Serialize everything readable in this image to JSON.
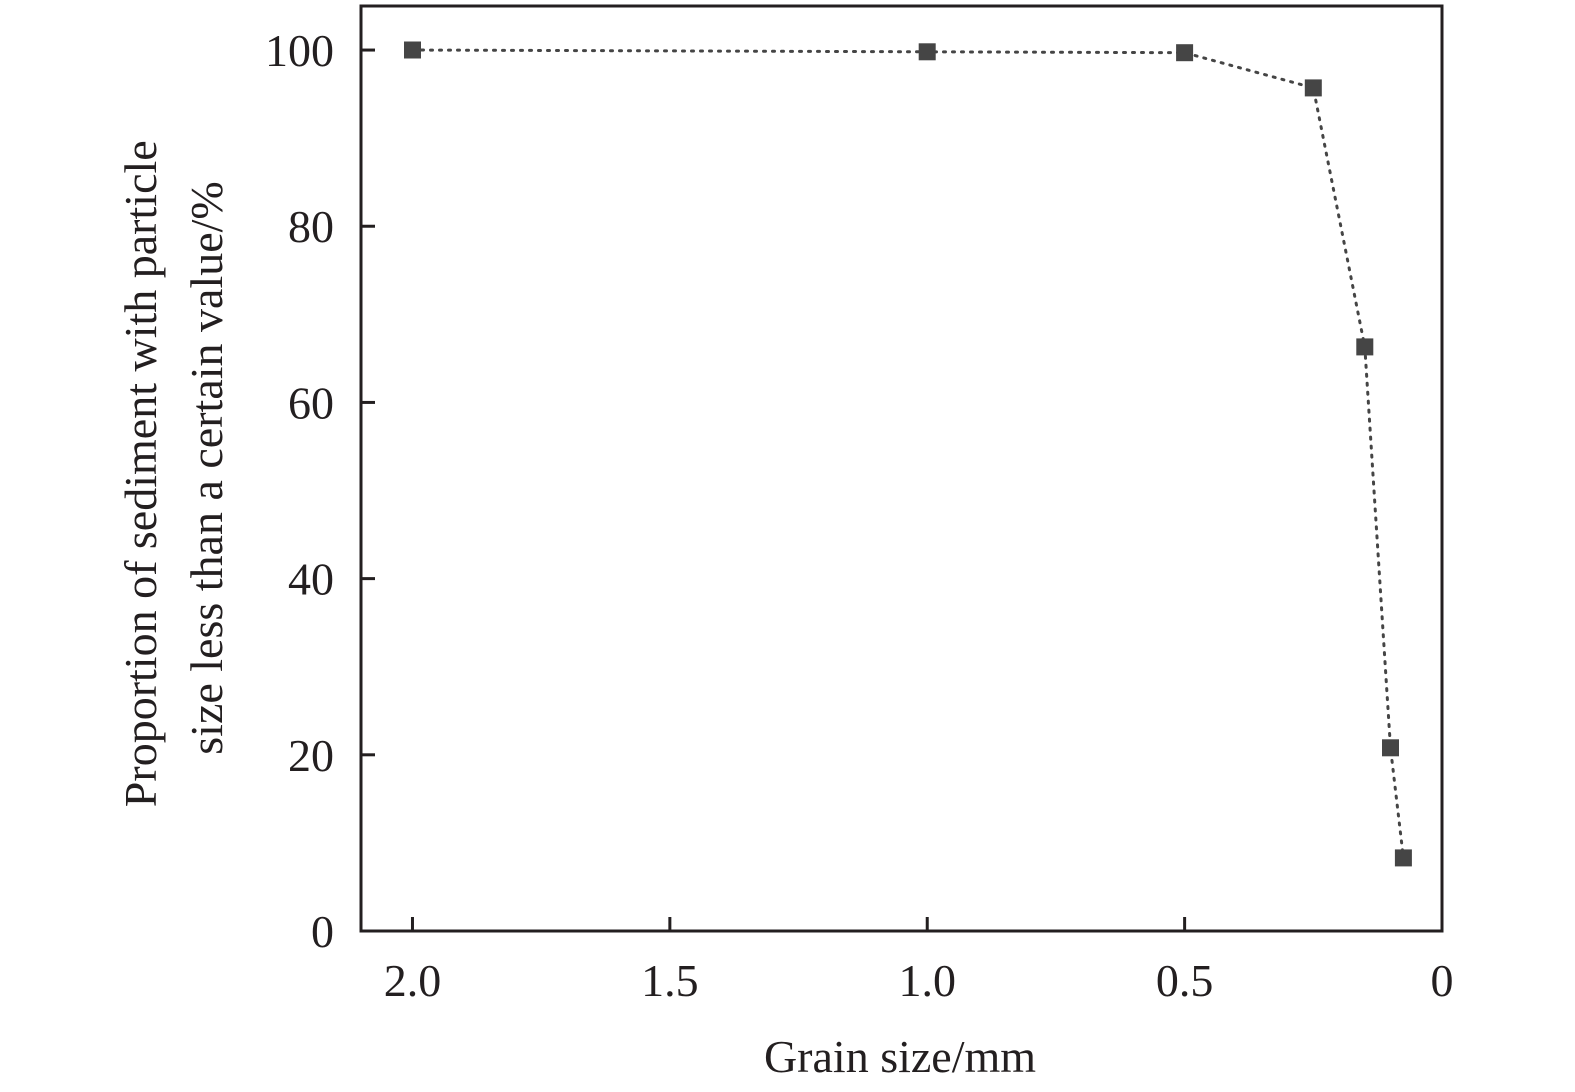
{
  "chart_data": {
    "type": "line",
    "title": "",
    "xlabel": "Grain size/mm",
    "ylabel_lines": [
      "Proportion of sediment with particle",
      "size less than a certain value/%"
    ],
    "x_reversed": true,
    "xlim": [
      2.1,
      0
    ],
    "ylim": [
      0,
      105
    ],
    "x_ticks": [
      {
        "value": 2.0,
        "label": "2.0"
      },
      {
        "value": 1.5,
        "label": "1.5"
      },
      {
        "value": 1.0,
        "label": "1.0"
      },
      {
        "value": 0.5,
        "label": "0.5"
      },
      {
        "value": 0,
        "label": "0"
      }
    ],
    "y_ticks": [
      {
        "value": 0,
        "label": "0"
      },
      {
        "value": 20,
        "label": "20"
      },
      {
        "value": 40,
        "label": "40"
      },
      {
        "value": 60,
        "label": "60"
      },
      {
        "value": 80,
        "label": "80"
      },
      {
        "value": 100,
        "label": "100"
      }
    ],
    "grid": false,
    "series": [
      {
        "marker": "square",
        "line_style": "dotted",
        "color": "#454545",
        "points": [
          {
            "x": 2.0,
            "y": 100.0
          },
          {
            "x": 1.0,
            "y": 99.8
          },
          {
            "x": 0.5,
            "y": 99.7
          },
          {
            "x": 0.25,
            "y": 95.7
          },
          {
            "x": 0.15,
            "y": 66.3
          },
          {
            "x": 0.1,
            "y": 20.8
          },
          {
            "x": 0.075,
            "y": 8.3
          }
        ]
      }
    ]
  }
}
